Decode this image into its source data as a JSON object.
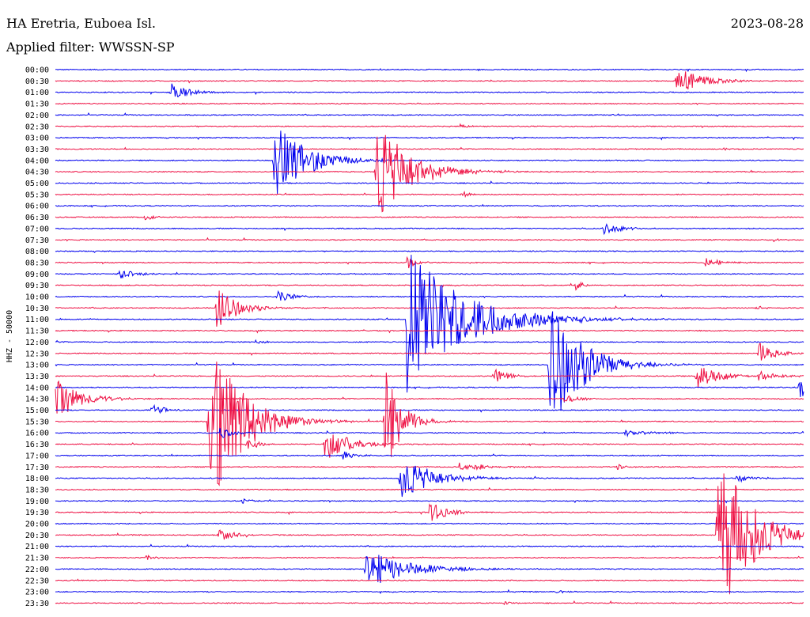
{
  "header": {
    "station": "HA Eretria, Euboea Isl.",
    "date": "2023-08-28",
    "filter": "Applied filter: WWSSN-SP"
  },
  "chart_data": {
    "type": "line",
    "title": "HA Eretria, Euboea Isl.",
    "subtitle": "Applied filter: WWSSN-SP",
    "ylabel": "HHZ - 50000",
    "xlabel": "",
    "colors": [
      "#0000ee",
      "#ee1144"
    ],
    "grid": false,
    "rows": [
      {
        "label": "00:00",
        "amp": 0.6,
        "events": []
      },
      {
        "label": "00:30",
        "amp": 0.6,
        "events": [
          {
            "x": 0.83,
            "a": 20,
            "d": 0.03
          }
        ]
      },
      {
        "label": "01:00",
        "amp": 0.6,
        "events": [
          {
            "x": 0.155,
            "a": 12,
            "d": 0.02
          }
        ]
      },
      {
        "label": "01:30",
        "amp": 0.6,
        "events": []
      },
      {
        "label": "02:00",
        "amp": 0.6,
        "events": [
          {
            "x": 0.745,
            "a": 2,
            "d": 0.01
          }
        ]
      },
      {
        "label": "02:30",
        "amp": 0.6,
        "events": [
          {
            "x": 0.54,
            "a": 3,
            "d": 0.01
          }
        ]
      },
      {
        "label": "03:00",
        "amp": 0.6,
        "events": []
      },
      {
        "label": "03:30",
        "amp": 0.6,
        "events": [
          {
            "x": 0.893,
            "a": 2,
            "d": 0.01
          }
        ]
      },
      {
        "label": "04:00",
        "amp": 0.6,
        "events": [
          {
            "x": 0.292,
            "a": 52,
            "d": 0.04
          }
        ]
      },
      {
        "label": "04:30",
        "amp": 0.6,
        "events": [
          {
            "x": 0.428,
            "a": 72,
            "d": 0.04
          }
        ]
      },
      {
        "label": "05:00",
        "amp": 0.6,
        "events": []
      },
      {
        "label": "05:30",
        "amp": 0.6,
        "events": [
          {
            "x": 0.543,
            "a": 5,
            "d": 0.01
          }
        ]
      },
      {
        "label": "06:00",
        "amp": 0.6,
        "events": []
      },
      {
        "label": "06:30",
        "amp": 0.6,
        "events": [
          {
            "x": 0.12,
            "a": 4,
            "d": 0.01
          }
        ]
      },
      {
        "label": "07:00",
        "amp": 0.6,
        "events": [
          {
            "x": 0.733,
            "a": 8,
            "d": 0.02
          }
        ]
      },
      {
        "label": "07:30",
        "amp": 0.6,
        "events": [
          {
            "x": 0.96,
            "a": 2,
            "d": 0.01
          }
        ]
      },
      {
        "label": "08:00",
        "amp": 0.6,
        "events": []
      },
      {
        "label": "08:30",
        "amp": 0.6,
        "events": [
          {
            "x": 0.47,
            "a": 10,
            "d": 0.01
          },
          {
            "x": 0.868,
            "a": 6,
            "d": 0.02
          }
        ]
      },
      {
        "label": "09:00",
        "amp": 0.6,
        "events": [
          {
            "x": 0.085,
            "a": 6,
            "d": 0.02
          }
        ]
      },
      {
        "label": "09:30",
        "amp": 0.6,
        "events": [
          {
            "x": 0.695,
            "a": 6,
            "d": 0.01
          }
        ]
      },
      {
        "label": "10:00",
        "amp": 0.6,
        "events": [
          {
            "x": 0.297,
            "a": 10,
            "d": 0.015
          }
        ]
      },
      {
        "label": "10:30",
        "amp": 0.6,
        "events": [
          {
            "x": 0.215,
            "a": 28,
            "d": 0.025
          },
          {
            "x": 0.935,
            "a": 4,
            "d": 0.01
          }
        ]
      },
      {
        "label": "11:00",
        "amp": 0.6,
        "events": [
          {
            "x": 0.47,
            "a": 95,
            "d": 0.07
          }
        ]
      },
      {
        "label": "11:30",
        "amp": 0.6,
        "events": []
      },
      {
        "label": "12:00",
        "amp": 0.6,
        "events": [
          {
            "x": 0.267,
            "a": 4,
            "d": 0.01
          }
        ]
      },
      {
        "label": "12:30",
        "amp": 0.6,
        "events": [
          {
            "x": 0.94,
            "a": 14,
            "d": 0.02
          }
        ]
      },
      {
        "label": "13:00",
        "amp": 0.6,
        "events": [
          {
            "x": 0.66,
            "a": 85,
            "d": 0.04
          }
        ]
      },
      {
        "label": "13:30",
        "amp": 0.6,
        "events": [
          {
            "x": 0.586,
            "a": 10,
            "d": 0.015
          },
          {
            "x": 0.857,
            "a": 18,
            "d": 0.025
          },
          {
            "x": 0.94,
            "a": 8,
            "d": 0.02
          }
        ]
      },
      {
        "label": "14:00",
        "amp": 0.6,
        "events": [
          {
            "x": 0.995,
            "a": 30,
            "d": 0.005
          }
        ]
      },
      {
        "label": "14:30",
        "amp": 0.6,
        "events": [
          {
            "x": 0.0,
            "a": 28,
            "d": 0.03
          },
          {
            "x": 0.68,
            "a": 6,
            "d": 0.02
          }
        ]
      },
      {
        "label": "15:00",
        "amp": 0.6,
        "events": [
          {
            "x": 0.128,
            "a": 10,
            "d": 0.015
          }
        ]
      },
      {
        "label": "15:30",
        "amp": 0.6,
        "events": [
          {
            "x": 0.205,
            "a": 120,
            "d": 0.04
          },
          {
            "x": 0.44,
            "a": 70,
            "d": 0.02
          }
        ]
      },
      {
        "label": "16:00",
        "amp": 0.6,
        "events": [
          {
            "x": 0.22,
            "a": 8,
            "d": 0.015
          },
          {
            "x": 0.76,
            "a": 4,
            "d": 0.03
          }
        ]
      },
      {
        "label": "16:30",
        "amp": 0.6,
        "events": [
          {
            "x": 0.255,
            "a": 8,
            "d": 0.015
          },
          {
            "x": 0.36,
            "a": 22,
            "d": 0.03
          }
        ]
      },
      {
        "label": "17:00",
        "amp": 0.6,
        "events": [
          {
            "x": 0.383,
            "a": 6,
            "d": 0.015
          }
        ]
      },
      {
        "label": "17:30",
        "amp": 0.6,
        "events": [
          {
            "x": 0.54,
            "a": 5,
            "d": 0.04
          },
          {
            "x": 0.75,
            "a": 5,
            "d": 0.01
          }
        ]
      },
      {
        "label": "18:00",
        "amp": 0.6,
        "events": [
          {
            "x": 0.46,
            "a": 30,
            "d": 0.04
          },
          {
            "x": 0.91,
            "a": 6,
            "d": 0.015
          }
        ]
      },
      {
        "label": "18:30",
        "amp": 0.6,
        "events": []
      },
      {
        "label": "19:00",
        "amp": 0.6,
        "events": [
          {
            "x": 0.25,
            "a": 4,
            "d": 0.01
          }
        ]
      },
      {
        "label": "19:30",
        "amp": 0.6,
        "events": [
          {
            "x": 0.5,
            "a": 14,
            "d": 0.02
          }
        ]
      },
      {
        "label": "20:00",
        "amp": 0.6,
        "events": []
      },
      {
        "label": "20:30",
        "amp": 0.6,
        "events": [
          {
            "x": 0.218,
            "a": 12,
            "d": 0.015
          },
          {
            "x": 0.885,
            "a": 120,
            "d": 0.04
          }
        ]
      },
      {
        "label": "21:00",
        "amp": 0.6,
        "events": []
      },
      {
        "label": "21:30",
        "amp": 0.6,
        "events": [
          {
            "x": 0.12,
            "a": 4,
            "d": 0.01
          }
        ]
      },
      {
        "label": "22:00",
        "amp": 0.6,
        "events": [
          {
            "x": 0.415,
            "a": 26,
            "d": 0.05
          }
        ]
      },
      {
        "label": "22:30",
        "amp": 0.6,
        "events": []
      },
      {
        "label": "23:00",
        "amp": 0.6,
        "events": [
          {
            "x": 0.67,
            "a": 3,
            "d": 0.01
          }
        ]
      },
      {
        "label": "23:30",
        "amp": 0.6,
        "events": [
          {
            "x": 0.6,
            "a": 3,
            "d": 0.01
          }
        ]
      }
    ]
  }
}
